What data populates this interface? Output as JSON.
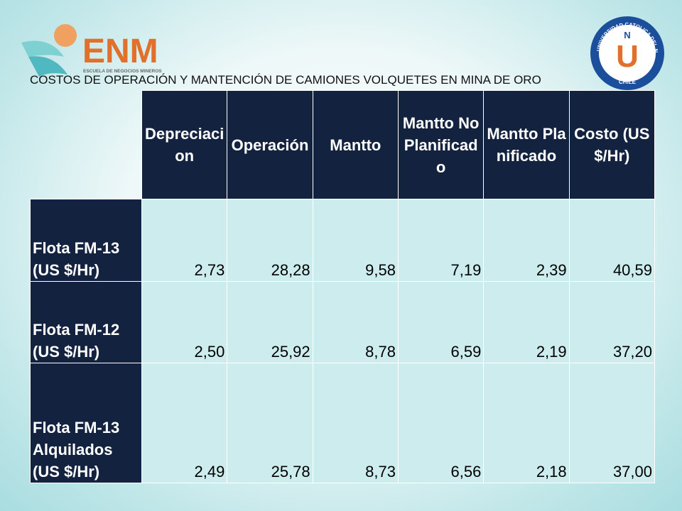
{
  "logo_left": {
    "name": "ENM",
    "subtitle": "ESCUELA DE NEGOCIOS MINEROS"
  },
  "logo_right": {
    "ring_text": "UNIVERSIDAD CATOLICA DEL NORTE",
    "country": "CHILE",
    "letter_n": "N",
    "letter_u": "U"
  },
  "title": "COSTOS DE OPERACIÓN Y MANTENCIÓN DE CAMIONES VOLQUETES EN MINA DE ORO",
  "table": {
    "header": [
      "Depreciacion",
      "Operación",
      "Mantto",
      "Mantto No Planificado",
      "Mantto Planificado",
      "Costo (US $/Hr)"
    ],
    "rows": [
      [
        "Flota FM-13 (US $/Hr)",
        "2,73",
        "28,28",
        "9,58",
        "7,19",
        "2,39",
        "40,59"
      ],
      [
        "Flota FM-12 (US $/Hr)",
        "2,50",
        "25,92",
        "8,78",
        "6,59",
        "2,19",
        "37,20"
      ],
      [
        "Flota FM-13 Alquilados (US $/Hr)",
        "2,49",
        "25,78",
        "8,73",
        "6,56",
        "2,18",
        "37,00"
      ]
    ]
  }
}
